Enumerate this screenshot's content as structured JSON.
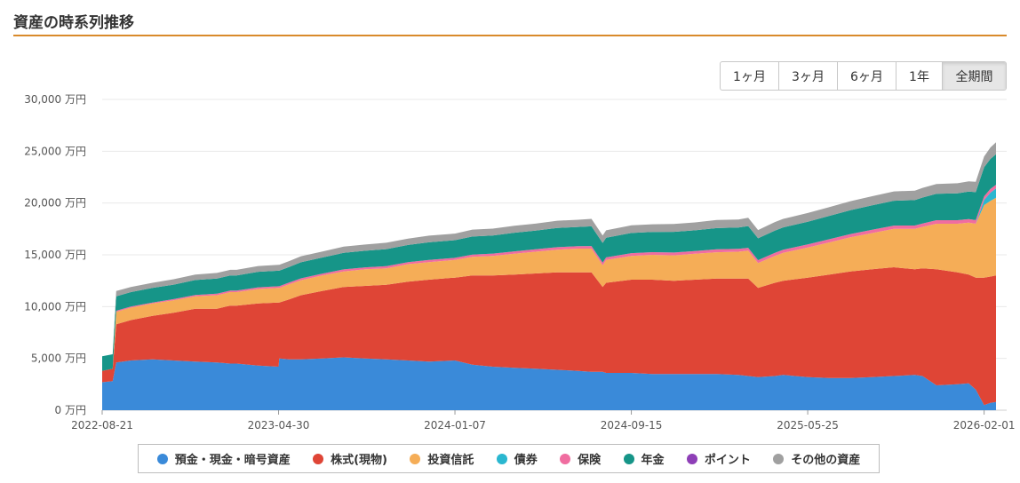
{
  "page": {
    "title": "資産の時系列推移"
  },
  "range_buttons": [
    "1ヶ月",
    "3ヶ月",
    "6ヶ月",
    "1年",
    "全期間"
  ],
  "active_range": "全期間",
  "chart_data": {
    "type": "area",
    "stacked": true,
    "y_unit": "万円",
    "ylim": [
      0,
      30000
    ],
    "y_ticks": [
      0,
      5000,
      10000,
      15000,
      20000,
      25000,
      30000
    ],
    "y_tick_labels": [
      "0 万円",
      "5,000 万円",
      "10,000 万円",
      "15,000 万円",
      "20,000 万円",
      "25,000 万円",
      "30,000 万円"
    ],
    "x_range": [
      "2022-08-21",
      "2026-02-18"
    ],
    "x_tick_labels": [
      "2022-08-21",
      "2023-04-30",
      "2024-01-07",
      "2024-09-15",
      "2025-05-25",
      "2026-02-01"
    ],
    "grid": "horizontal",
    "legend_position": "bottom",
    "x": [
      "2022-08-21",
      "2022-09-05",
      "2022-09-10",
      "2022-10-01",
      "2022-11-01",
      "2022-12-01",
      "2023-01-01",
      "2023-02-01",
      "2023-02-20",
      "2023-03-01",
      "2023-04-01",
      "2023-04-30",
      "2023-05-01",
      "2023-05-15",
      "2023-06-01",
      "2023-07-01",
      "2023-08-01",
      "2023-09-01",
      "2023-10-01",
      "2023-11-01",
      "2023-12-01",
      "2024-01-07",
      "2024-02-01",
      "2024-03-01",
      "2024-04-01",
      "2024-05-01",
      "2024-06-01",
      "2024-07-01",
      "2024-07-20",
      "2024-08-05",
      "2024-08-10",
      "2024-09-15",
      "2024-10-15",
      "2024-11-15",
      "2024-12-15",
      "2025-01-15",
      "2025-02-15",
      "2025-03-01",
      "2025-03-15",
      "2025-04-08",
      "2025-04-20",
      "2025-05-25",
      "2025-06-25",
      "2025-07-25",
      "2025-08-25",
      "2025-09-25",
      "2025-10-25",
      "2025-11-05",
      "2025-11-25",
      "2025-12-25",
      "2026-01-10",
      "2026-01-20",
      "2026-02-01",
      "2026-02-10",
      "2026-02-18"
    ],
    "series": [
      {
        "name": "預金・現金・暗号資産",
        "color": "#3a8ad9",
        "values": [
          2700,
          2800,
          4600,
          4800,
          4900,
          4800,
          4700,
          4600,
          4500,
          4500,
          4300,
          4200,
          5000,
          4900,
          4900,
          5000,
          5100,
          5000,
          4900,
          4800,
          4700,
          4800,
          4400,
          4200,
          4100,
          4000,
          3900,
          3800,
          3700,
          3700,
          3600,
          3600,
          3500,
          3500,
          3500,
          3500,
          3400,
          3300,
          3200,
          3300,
          3400,
          3200,
          3100,
          3100,
          3200,
          3300,
          3400,
          3300,
          2400,
          2500,
          2600,
          2000,
          500,
          700,
          800
        ]
      },
      {
        "name": "株式(現物)",
        "color": "#df4536",
        "values": [
          1100,
          1200,
          3700,
          3900,
          4200,
          4600,
          5100,
          5200,
          5600,
          5600,
          6000,
          6200,
          5400,
          5800,
          6200,
          6500,
          6800,
          7000,
          7200,
          7600,
          7900,
          8000,
          8600,
          8800,
          9000,
          9200,
          9400,
          9500,
          9600,
          8200,
          8700,
          9000,
          9100,
          9000,
          9100,
          9200,
          9300,
          9400,
          8600,
          9000,
          9100,
          9600,
          10000,
          10300,
          10400,
          10500,
          10200,
          10400,
          11200,
          10800,
          10500,
          10800,
          12300,
          12200,
          12200
        ]
      },
      {
        "name": "投資信託",
        "color": "#f5ad57",
        "values": [
          0,
          0,
          1200,
          1200,
          1200,
          1200,
          1200,
          1300,
          1300,
          1300,
          1400,
          1400,
          1400,
          1450,
          1450,
          1500,
          1500,
          1600,
          1600,
          1700,
          1700,
          1700,
          1800,
          1900,
          2000,
          2100,
          2200,
          2300,
          2300,
          2100,
          2200,
          2300,
          2400,
          2450,
          2500,
          2550,
          2600,
          2700,
          2400,
          2600,
          2700,
          2900,
          3100,
          3300,
          3500,
          3700,
          3900,
          4000,
          4400,
          4700,
          5000,
          5200,
          7000,
          7300,
          7500
        ]
      },
      {
        "name": "債券",
        "color": "#2ab7d0",
        "values": [
          0,
          0,
          0,
          0,
          0,
          0,
          0,
          0,
          0,
          0,
          0,
          0,
          0,
          0,
          0,
          0,
          0,
          0,
          0,
          0,
          0,
          0,
          0,
          0,
          0,
          0,
          0,
          0,
          0,
          0,
          0,
          0,
          0,
          0,
          0,
          0,
          0,
          0,
          0,
          0,
          0,
          0,
          0,
          0,
          0,
          0,
          0,
          0,
          0,
          0,
          0,
          0,
          500,
          800,
          900
        ]
      },
      {
        "name": "保険",
        "color": "#f06da0",
        "values": [
          0,
          0,
          100,
          100,
          100,
          120,
          120,
          150,
          150,
          150,
          160,
          170,
          170,
          170,
          180,
          180,
          190,
          190,
          200,
          200,
          210,
          210,
          220,
          220,
          230,
          230,
          240,
          240,
          250,
          250,
          250,
          260,
          260,
          270,
          270,
          280,
          280,
          280,
          290,
          290,
          300,
          300,
          310,
          310,
          320,
          320,
          330,
          330,
          340,
          340,
          350,
          350,
          350,
          360,
          360
        ]
      },
      {
        "name": "年金",
        "color": "#169588",
        "values": [
          1400,
          1400,
          1400,
          1400,
          1400,
          1400,
          1450,
          1450,
          1450,
          1450,
          1500,
          1500,
          1500,
          1500,
          1550,
          1550,
          1600,
          1600,
          1650,
          1650,
          1700,
          1700,
          1750,
          1750,
          1800,
          1800,
          1850,
          1850,
          1900,
          1900,
          1900,
          1950,
          1950,
          2000,
          2000,
          2050,
          2050,
          2100,
          2100,
          2150,
          2150,
          2200,
          2250,
          2300,
          2350,
          2400,
          2450,
          2500,
          2550,
          2600,
          2650,
          2700,
          2800,
          2900,
          2950
        ]
      },
      {
        "name": "ポイント",
        "color": "#8e3fb7",
        "values": [
          0,
          0,
          0,
          0,
          0,
          0,
          0,
          0,
          0,
          0,
          0,
          0,
          0,
          0,
          0,
          0,
          0,
          0,
          0,
          0,
          0,
          0,
          0,
          0,
          0,
          0,
          0,
          0,
          0,
          0,
          0,
          0,
          0,
          0,
          0,
          0,
          0,
          0,
          0,
          0,
          0,
          0,
          0,
          0,
          0,
          0,
          0,
          0,
          0,
          0,
          0,
          0,
          0,
          0,
          0
        ]
      },
      {
        "name": "その他の資産",
        "color": "#a0a0a0",
        "values": [
          0,
          0,
          500,
          500,
          500,
          520,
          520,
          550,
          550,
          550,
          560,
          560,
          570,
          570,
          580,
          580,
          600,
          600,
          620,
          620,
          640,
          640,
          660,
          660,
          680,
          680,
          700,
          700,
          720,
          720,
          720,
          740,
          740,
          760,
          760,
          780,
          780,
          800,
          800,
          820,
          820,
          840,
          850,
          870,
          890,
          900,
          920,
          930,
          950,
          970,
          990,
          1000,
          1050,
          1100,
          1150
        ]
      }
    ]
  }
}
